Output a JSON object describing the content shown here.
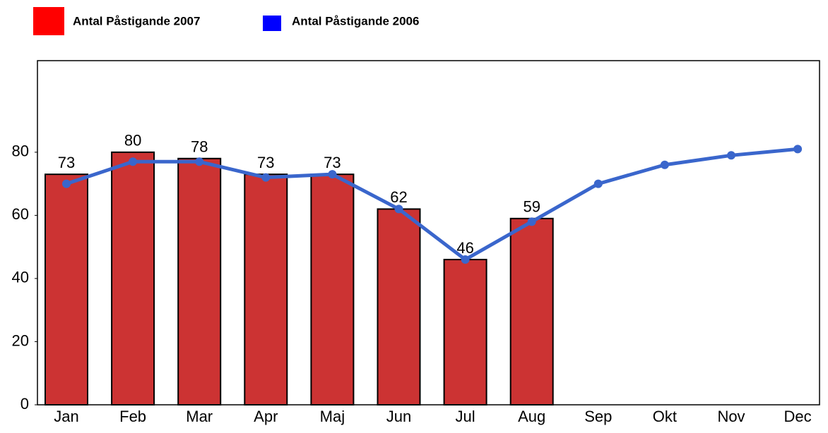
{
  "chart_data": {
    "type": "bar",
    "categories": [
      "Jan",
      "Feb",
      "Mar",
      "Apr",
      "Maj",
      "Jun",
      "Jul",
      "Aug",
      "Sep",
      "Okt",
      "Nov",
      "Dec"
    ],
    "series": [
      {
        "name": "Antal Påstigande 2007",
        "type": "bar",
        "color": "#cc3333",
        "legend_color": "#ff0000",
        "values": [
          73,
          80,
          78,
          73,
          73,
          62,
          46,
          59,
          null,
          null,
          null,
          null
        ]
      },
      {
        "name": "Antal Påstigande 2006",
        "type": "line",
        "color": "#3a66cc",
        "legend_color": "#0000ff",
        "values": [
          70,
          77,
          77,
          72,
          73,
          62,
          46,
          58,
          70,
          76,
          79,
          81
        ]
      }
    ],
    "ylim": [
      0,
      109
    ],
    "yticks": [
      0,
      20,
      40,
      60,
      80
    ],
    "grid": false
  }
}
